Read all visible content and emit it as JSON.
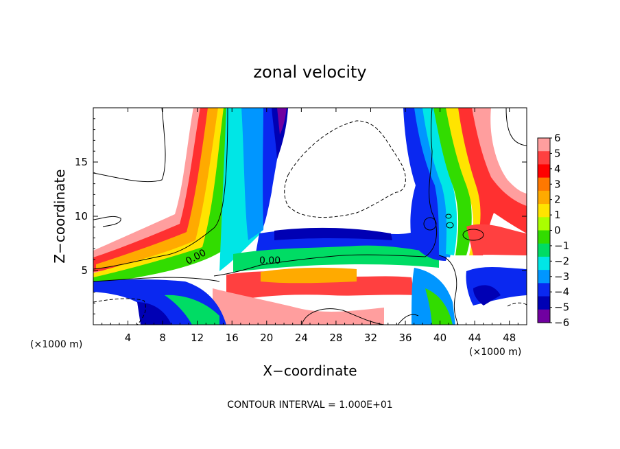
{
  "chart_data": {
    "type": "heatmap",
    "title": "zonal velocity",
    "xlabel": "X−coordinate",
    "ylabel": "Z−coordinate",
    "x_unit_left": "(×1000 m)",
    "x_unit_right": "(×1000 m)",
    "xlim": [
      0,
      50
    ],
    "ylim": [
      0,
      20
    ],
    "x_ticks": [
      4,
      8,
      12,
      16,
      20,
      24,
      28,
      32,
      36,
      40,
      44,
      48
    ],
    "x_tick_labels": [
      "4",
      "8",
      "12",
      "16",
      "20",
      "24",
      "28",
      "32",
      "36",
      "40",
      "44",
      "48"
    ],
    "y_ticks": [
      5,
      10,
      15
    ],
    "y_tick_labels": [
      "5",
      "10",
      "15"
    ],
    "colorbar": {
      "levels": [
        6,
        5,
        4,
        3,
        2,
        1,
        0,
        -1,
        -2,
        -3,
        -4,
        -5,
        -6
      ],
      "labels": [
        "6",
        "5",
        "4",
        "3",
        "2",
        "1",
        "0",
        "−1",
        "−2",
        "−3",
        "−4",
        "−5",
        "−6"
      ],
      "colors": [
        "#ff9e9e",
        "#ff4040",
        "#ff0000",
        "#ff7800",
        "#ffaa00",
        "#ffe400",
        "#aaff00",
        "#32dc00",
        "#00dc64",
        "#00e6e6",
        "#0096ff",
        "#0a28f0",
        "#0000b4",
        "#7000a0"
      ]
    },
    "contour_labels": [
      "0.00",
      "0.00"
    ],
    "footer_note": "CONTOUR INTERVAL = 1.000E+01"
  }
}
